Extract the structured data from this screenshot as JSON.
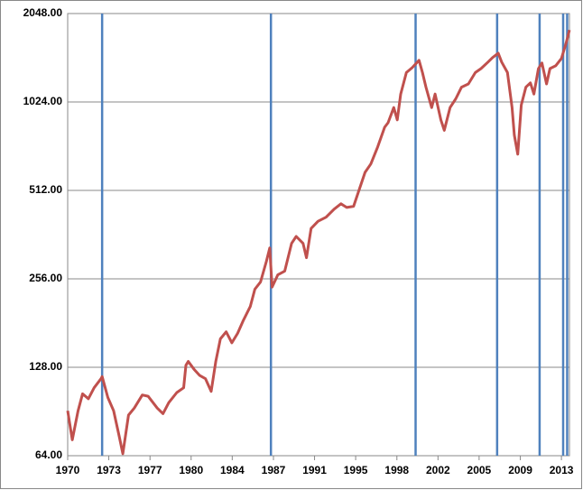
{
  "chart_data": {
    "type": "line",
    "log_scale": true,
    "grid": true,
    "x": [
      1970.0,
      1970.4,
      1970.9,
      1971.3,
      1971.8,
      1972.3,
      1972.9,
      1973.0,
      1973.5,
      1974.0,
      1974.5,
      1974.8,
      1975.3,
      1975.8,
      1976.5,
      1977.0,
      1977.8,
      1978.3,
      1978.8,
      1979.5,
      1980.1,
      1980.3,
      1980.5,
      1981.0,
      1981.5,
      1982.0,
      1982.5,
      1982.9,
      1983.3,
      1983.8,
      1984.3,
      1984.8,
      1985.3,
      1985.9,
      1986.3,
      1986.8,
      1987.3,
      1987.6,
      1987.8,
      1988.3,
      1988.9,
      1989.5,
      1989.9,
      1990.5,
      1990.8,
      1991.2,
      1991.8,
      1992.5,
      1993.2,
      1993.8,
      1994.3,
      1994.9,
      1995.4,
      1995.9,
      1996.4,
      1997.0,
      1997.6,
      1997.9,
      1998.4,
      1998.7,
      1999.0,
      1999.5,
      2000.0,
      2000.6,
      2000.9,
      2001.2,
      2001.7,
      2002.0,
      2002.5,
      2002.8,
      2003.3,
      2003.8,
      2004.3,
      2004.9,
      2005.5,
      2006.0,
      2006.6,
      2007.0,
      2007.5,
      2007.8,
      2008.3,
      2008.7,
      2008.9,
      2009.2,
      2009.5,
      2009.9,
      2010.3,
      2010.6,
      2011.0,
      2011.3,
      2011.7,
      2012.0,
      2012.5,
      2013.0,
      2013.4,
      2013.7
    ],
    "series": [
      {
        "color": "#c0504d",
        "values": [
          91,
          72.5,
          91,
          104,
          100,
          109,
          117,
          119,
          101,
          91,
          74,
          65,
          88,
          93,
          103,
          102,
          93,
          89,
          97,
          105,
          109,
          130,
          134,
          126,
          120,
          117,
          106,
          134,
          160,
          169,
          155,
          167,
          185,
          206,
          236,
          250,
          293,
          326,
          240,
          264,
          272,
          338,
          357,
          338,
          302,
          380,
          402,
          415,
          442,
          461,
          448,
          452,
          517,
          590,
          630,
          720,
          840,
          870,
          980,
          890,
          1090,
          1290,
          1340,
          1420,
          1290,
          1150,
          980,
          1090,
          890,
          820,
          980,
          1050,
          1150,
          1180,
          1290,
          1330,
          1400,
          1450,
          1500,
          1400,
          1290,
          980,
          790,
          680,
          1000,
          1150,
          1190,
          1090,
          1330,
          1390,
          1180,
          1330,
          1360,
          1440,
          1620,
          1800
        ]
      }
    ],
    "markers": [
      1973.0,
      1987.7,
      2000.3,
      2007.4,
      2011.1,
      2013.15,
      2013.5
    ],
    "marker_color": "#4f81bd",
    "xlim": [
      1970,
      2013.7
    ],
    "xticks": [
      {
        "value": 1970,
        "label": "1970"
      },
      {
        "value": 1973.58,
        "label": "1973"
      },
      {
        "value": 1977.17,
        "label": "1977"
      },
      {
        "value": 1980.75,
        "label": "1980"
      },
      {
        "value": 1984.33,
        "label": "1984"
      },
      {
        "value": 1987.92,
        "label": "1987"
      },
      {
        "value": 1991.5,
        "label": "1991"
      },
      {
        "value": 1995.08,
        "label": "1995"
      },
      {
        "value": 1998.67,
        "label": "1998"
      },
      {
        "value": 2002.25,
        "label": "2002"
      },
      {
        "value": 2005.83,
        "label": "2005"
      },
      {
        "value": 2009.42,
        "label": "2009"
      },
      {
        "value": 2013,
        "label": "2013"
      }
    ],
    "ylim": [
      64,
      2048
    ],
    "yticks": [
      {
        "value": 64,
        "label": "64.00"
      },
      {
        "value": 128,
        "label": "128.00"
      },
      {
        "value": 256,
        "label": "256.00"
      },
      {
        "value": 512,
        "label": "512.00"
      },
      {
        "value": 1024,
        "label": "1024.00"
      },
      {
        "value": 2048,
        "label": "2048.00"
      }
    ]
  }
}
